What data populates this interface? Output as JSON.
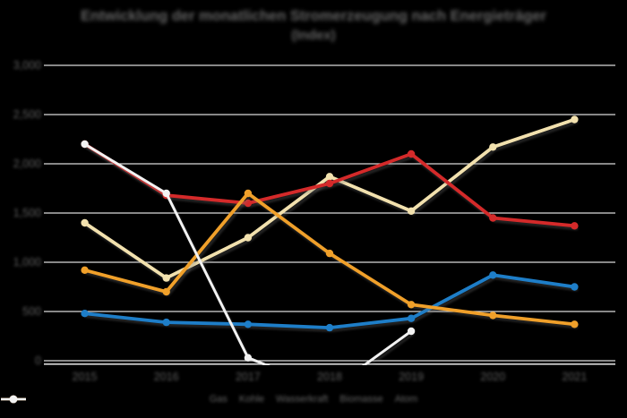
{
  "title": {
    "line1": "Entwicklung der monatlichen Stromerzeugung nach Energieträger",
    "line2": "(Index)"
  },
  "chart_data": {
    "type": "line",
    "categories": [
      "2015",
      "2016",
      "2017",
      "2018",
      "2019",
      "2020",
      "2021"
    ],
    "y_ticks": [
      "0",
      "500",
      "1,000",
      "1,500",
      "2,000",
      "2,500",
      "3,000"
    ],
    "ylim": [
      0,
      3000
    ],
    "y_step": 500,
    "grid": true,
    "legend_position": "bottom",
    "background": "#000000",
    "gridline_color": "#d9d9d9",
    "text_color": "#5e5e5e",
    "series": [
      {
        "name": "Gas",
        "color": "#f2e1ae",
        "marker": "circle",
        "values": [
          1400,
          840,
          1250,
          1870,
          1520,
          2170,
          2450
        ]
      },
      {
        "name": "Kohle",
        "color": "#d42a2a",
        "marker": "circle",
        "values": [
          2200,
          1680,
          1600,
          1800,
          2100,
          1450,
          1370
        ]
      },
      {
        "name": "Wasserkraft",
        "color": "#1e7ec8",
        "marker": "circle",
        "values": [
          480,
          390,
          370,
          335,
          430,
          870,
          750
        ]
      },
      {
        "name": "Biomasse",
        "color": "#f0a02a",
        "marker": "circle",
        "values": [
          920,
          700,
          1700,
          1090,
          570,
          460,
          370
        ]
      },
      {
        "name": "Atom",
        "color": "#f2f2f2",
        "marker": "circle",
        "values": [
          2200,
          1700,
          30,
          -300,
          300,
          null,
          null
        ]
      }
    ]
  }
}
